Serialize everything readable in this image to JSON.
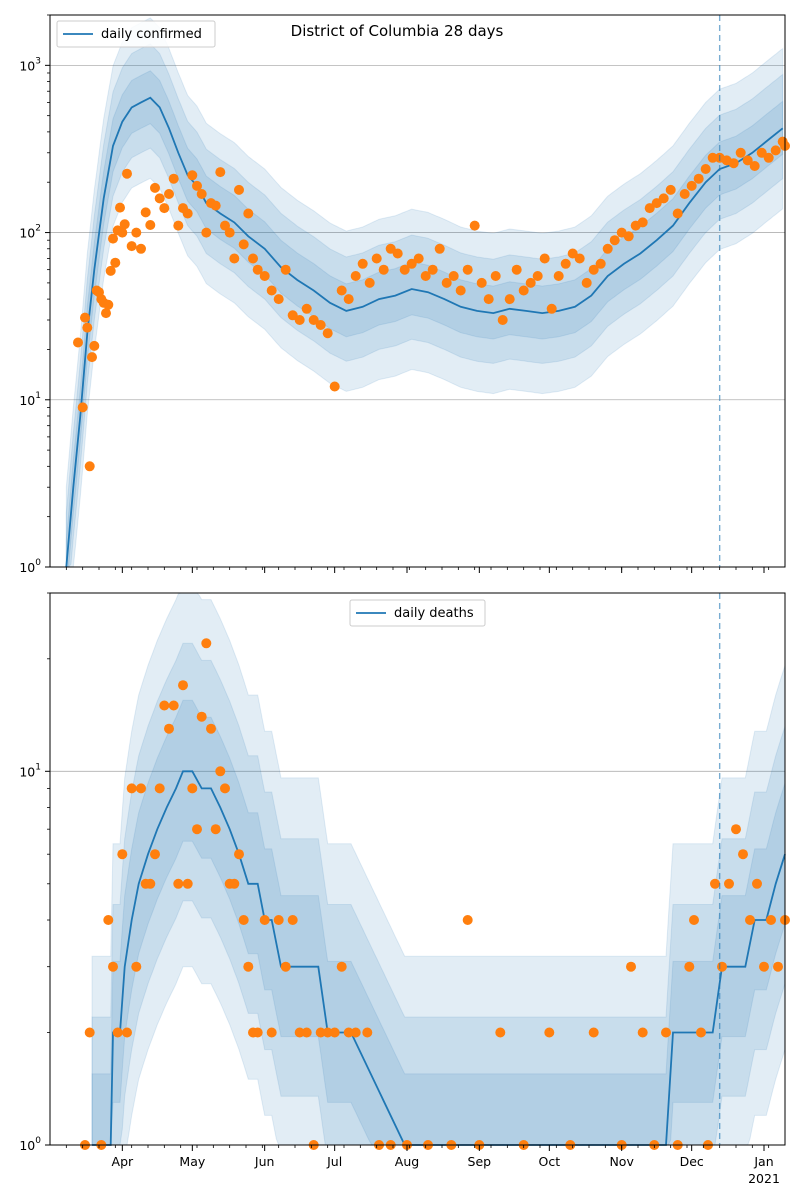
{
  "chart_data": [
    {
      "type": "line",
      "title": "District of Columbia 28 days",
      "legend": {
        "label": "daily confirmed",
        "placement": "top-left"
      },
      "xlabel": "",
      "ylabel": "",
      "yscale": "log",
      "ylim": [
        1,
        2000
      ],
      "yticks": [
        {
          "value": 1,
          "base": "10",
          "exp": "0"
        },
        {
          "value": 10,
          "base": "10",
          "exp": "1"
        },
        {
          "value": 100,
          "base": "10",
          "exp": "2"
        },
        {
          "value": 1000,
          "base": "10",
          "exp": "3"
        }
      ],
      "grid": "horizontal major",
      "forecast_start": "2020-12-13",
      "colors": {
        "median": "#1f77b4",
        "band": "#1f77b4",
        "observed": "#ff7f0e"
      },
      "median_series": {
        "x": [
          "2020-03-08",
          "2020-03-11",
          "2020-03-14",
          "2020-03-17",
          "2020-03-20",
          "2020-03-24",
          "2020-03-28",
          "2020-04-01",
          "2020-04-05",
          "2020-04-09",
          "2020-04-13",
          "2020-04-17",
          "2020-04-21",
          "2020-04-25",
          "2020-04-29",
          "2020-05-03",
          "2020-05-07",
          "2020-05-13",
          "2020-05-19",
          "2020-05-25",
          "2020-06-01",
          "2020-06-08",
          "2020-06-15",
          "2020-06-22",
          "2020-06-29",
          "2020-07-06",
          "2020-07-13",
          "2020-07-20",
          "2020-07-27",
          "2020-08-03",
          "2020-08-10",
          "2020-08-17",
          "2020-08-24",
          "2020-08-31",
          "2020-09-07",
          "2020-09-14",
          "2020-09-21",
          "2020-09-28",
          "2020-10-05",
          "2020-10-12",
          "2020-10-19",
          "2020-10-26",
          "2020-11-02",
          "2020-11-09",
          "2020-11-16",
          "2020-11-23",
          "2020-11-30",
          "2020-12-07",
          "2020-12-13",
          "2020-12-20",
          "2020-12-27",
          "2021-01-03",
          "2021-01-09"
        ],
        "y": [
          1,
          3,
          8,
          25,
          60,
          160,
          330,
          460,
          560,
          600,
          640,
          560,
          420,
          300,
          220,
          190,
          150,
          130,
          115,
          95,
          80,
          62,
          52,
          45,
          38,
          34,
          36,
          40,
          42,
          46,
          44,
          40,
          36,
          34,
          33,
          35,
          34,
          33,
          34,
          36,
          42,
          55,
          65,
          75,
          90,
          110,
          150,
          200,
          240,
          260,
          300,
          360,
          420
        ]
      },
      "bands": [
        {
          "name": "50% interval",
          "lower_factor": 0.7,
          "upper_factor": 1.45
        },
        {
          "name": "80% interval",
          "lower_factor": 0.5,
          "upper_factor": 2.1
        },
        {
          "name": "95% interval",
          "lower_factor": 0.33,
          "upper_factor": 3.0
        }
      ],
      "observed_points": {
        "x": [
          "2020-03-13",
          "2020-03-15",
          "2020-03-16",
          "2020-03-17",
          "2020-03-18",
          "2020-03-19",
          "2020-03-20",
          "2020-03-21",
          "2020-03-22",
          "2020-03-23",
          "2020-03-24",
          "2020-03-25",
          "2020-03-26",
          "2020-03-27",
          "2020-03-28",
          "2020-03-29",
          "2020-03-30",
          "2020-03-31",
          "2020-04-01",
          "2020-04-02",
          "2020-04-03",
          "2020-04-05",
          "2020-04-07",
          "2020-04-09",
          "2020-04-11",
          "2020-04-13",
          "2020-04-15",
          "2020-04-17",
          "2020-04-19",
          "2020-04-21",
          "2020-04-23",
          "2020-04-25",
          "2020-04-27",
          "2020-04-29",
          "2020-05-01",
          "2020-05-03",
          "2020-05-05",
          "2020-05-07",
          "2020-05-09",
          "2020-05-11",
          "2020-05-13",
          "2020-05-15",
          "2020-05-17",
          "2020-05-19",
          "2020-05-21",
          "2020-05-23",
          "2020-05-25",
          "2020-05-27",
          "2020-05-29",
          "2020-06-01",
          "2020-06-04",
          "2020-06-07",
          "2020-06-10",
          "2020-06-13",
          "2020-06-16",
          "2020-06-19",
          "2020-06-22",
          "2020-06-25",
          "2020-06-28",
          "2020-07-01",
          "2020-07-04",
          "2020-07-07",
          "2020-07-10",
          "2020-07-13",
          "2020-07-16",
          "2020-07-19",
          "2020-07-22",
          "2020-07-25",
          "2020-07-28",
          "2020-07-31",
          "2020-08-03",
          "2020-08-06",
          "2020-08-09",
          "2020-08-12",
          "2020-08-15",
          "2020-08-18",
          "2020-08-21",
          "2020-08-24",
          "2020-08-27",
          "2020-08-30",
          "2020-09-02",
          "2020-09-05",
          "2020-09-08",
          "2020-09-11",
          "2020-09-14",
          "2020-09-17",
          "2020-09-20",
          "2020-09-23",
          "2020-09-26",
          "2020-09-29",
          "2020-10-02",
          "2020-10-05",
          "2020-10-08",
          "2020-10-11",
          "2020-10-14",
          "2020-10-17",
          "2020-10-20",
          "2020-10-23",
          "2020-10-26",
          "2020-10-29",
          "2020-11-01",
          "2020-11-04",
          "2020-11-07",
          "2020-11-10",
          "2020-11-13",
          "2020-11-16",
          "2020-11-19",
          "2020-11-22",
          "2020-11-25",
          "2020-11-28",
          "2020-12-01",
          "2020-12-04",
          "2020-12-07",
          "2020-12-10",
          "2020-12-13",
          "2020-12-16",
          "2020-12-19",
          "2020-12-22",
          "2020-12-25",
          "2020-12-28",
          "2020-12-31",
          "2021-01-03",
          "2021-01-06",
          "2021-01-09",
          "2021-01-10"
        ],
        "y": [
          22,
          9,
          31,
          27,
          4,
          18,
          21,
          45,
          44,
          40,
          38,
          33,
          37,
          59,
          92,
          66,
          103,
          141,
          100,
          112,
          225,
          83,
          100,
          80,
          132,
          111,
          185,
          160,
          140,
          170,
          210,
          110,
          140,
          130,
          220,
          190,
          170,
          100,
          150,
          145,
          230,
          110,
          100,
          70,
          180,
          85,
          130,
          70,
          60,
          55,
          45,
          40,
          60,
          32,
          30,
          35,
          30,
          28,
          25,
          12,
          45,
          40,
          55,
          65,
          50,
          70,
          60,
          80,
          75,
          60,
          65,
          70,
          55,
          60,
          80,
          50,
          55,
          45,
          60,
          110,
          50,
          40,
          55,
          30,
          40,
          60,
          45,
          50,
          55,
          70,
          35,
          55,
          65,
          75,
          70,
          50,
          60,
          65,
          80,
          90,
          100,
          95,
          110,
          115,
          140,
          150,
          160,
          180,
          130,
          170,
          190,
          210,
          240,
          280,
          280,
          270,
          260,
          300,
          270,
          250,
          300,
          280,
          310,
          350,
          330
        ]
      }
    },
    {
      "type": "line",
      "title": "",
      "legend": {
        "label": "daily deaths",
        "placement": "top-center"
      },
      "xlabel": "",
      "ylabel": "",
      "yscale": "log",
      "ylim": [
        1,
        30
      ],
      "yticks": [
        {
          "value": 1,
          "base": "10",
          "exp": "0"
        },
        {
          "value": 10,
          "base": "10",
          "exp": "1"
        }
      ],
      "grid": "horizontal major",
      "forecast_start": "2020-12-13",
      "colors": {
        "median": "#1f77b4",
        "band": "#1f77b4",
        "observed": "#ff7f0e"
      },
      "median_series": {
        "x": [
          "2020-03-19",
          "2020-03-24",
          "2020-03-27",
          "2020-03-28",
          "2020-03-31",
          "2020-04-02",
          "2020-04-05",
          "2020-04-08",
          "2020-04-12",
          "2020-04-16",
          "2020-04-20",
          "2020-04-24",
          "2020-04-27",
          "2020-05-01",
          "2020-05-05",
          "2020-05-09",
          "2020-05-13",
          "2020-05-17",
          "2020-05-21",
          "2020-05-25",
          "2020-05-29",
          "2020-06-01",
          "2020-06-04",
          "2020-06-08",
          "2020-06-12",
          "2020-06-16",
          "2020-06-20",
          "2020-06-24",
          "2020-06-28",
          "2020-07-01",
          "2020-07-04",
          "2020-07-08",
          "2020-07-31",
          "2020-09-01",
          "2020-10-01",
          "2020-11-01",
          "2020-11-20",
          "2020-11-23",
          "2020-11-26",
          "2020-11-29",
          "2020-12-03",
          "2020-12-06",
          "2020-12-10",
          "2020-12-14",
          "2020-12-20",
          "2020-12-24",
          "2020-12-28",
          "2021-01-02",
          "2021-01-06",
          "2021-01-10"
        ],
        "y": [
          1,
          1,
          1,
          2,
          2,
          3,
          4,
          5,
          6,
          7,
          8,
          9,
          10,
          10,
          9,
          9,
          8,
          7,
          6,
          5,
          5,
          4,
          4,
          3,
          3,
          3,
          3,
          3,
          2,
          2,
          2,
          2,
          1,
          1,
          1,
          1,
          1,
          2,
          2,
          2,
          2,
          2,
          2,
          3,
          3,
          3,
          4,
          4,
          5,
          6
        ]
      },
      "bands": [
        {
          "name": "50% interval",
          "lower_factor": 0.65,
          "upper_factor": 1.55
        },
        {
          "name": "80% interval",
          "lower_factor": 0.45,
          "upper_factor": 2.2
        },
        {
          "name": "95% interval",
          "lower_factor": 0.3,
          "upper_factor": 3.2
        }
      ],
      "observed_points": {
        "x": [
          "2020-03-16",
          "2020-03-18",
          "2020-03-23",
          "2020-03-26",
          "2020-03-28",
          "2020-03-30",
          "2020-04-01",
          "2020-04-03",
          "2020-04-05",
          "2020-04-07",
          "2020-04-09",
          "2020-04-11",
          "2020-04-13",
          "2020-04-15",
          "2020-04-17",
          "2020-04-19",
          "2020-04-21",
          "2020-04-23",
          "2020-04-25",
          "2020-04-27",
          "2020-04-29",
          "2020-05-01",
          "2020-05-03",
          "2020-05-05",
          "2020-05-07",
          "2020-05-09",
          "2020-05-11",
          "2020-05-13",
          "2020-05-15",
          "2020-05-17",
          "2020-05-19",
          "2020-05-21",
          "2020-05-23",
          "2020-05-25",
          "2020-05-27",
          "2020-05-29",
          "2020-06-01",
          "2020-06-04",
          "2020-06-07",
          "2020-06-10",
          "2020-06-13",
          "2020-06-16",
          "2020-06-19",
          "2020-06-22",
          "2020-06-25",
          "2020-06-28",
          "2020-07-01",
          "2020-07-04",
          "2020-07-07",
          "2020-07-10",
          "2020-07-15",
          "2020-07-20",
          "2020-07-25",
          "2020-08-01",
          "2020-08-10",
          "2020-08-20",
          "2020-08-27",
          "2020-09-01",
          "2020-09-10",
          "2020-09-20",
          "2020-10-01",
          "2020-10-10",
          "2020-10-20",
          "2020-11-01",
          "2020-11-05",
          "2020-11-10",
          "2020-11-15",
          "2020-11-20",
          "2020-11-25",
          "2020-11-30",
          "2020-12-02",
          "2020-12-05",
          "2020-12-08",
          "2020-12-11",
          "2020-12-14",
          "2020-12-17",
          "2020-12-20",
          "2020-12-23",
          "2020-12-26",
          "2020-12-29",
          "2021-01-01",
          "2021-01-04",
          "2021-01-07",
          "2021-01-10"
        ],
        "y": [
          1,
          2,
          1,
          4,
          3,
          2,
          6,
          2,
          9,
          3,
          9,
          5,
          5,
          6,
          9,
          15,
          13,
          15,
          5,
          17,
          5,
          9,
          7,
          14,
          22,
          13,
          7,
          10,
          9,
          5,
          5,
          6,
          4,
          3,
          2,
          2,
          4,
          2,
          4,
          3,
          4,
          2,
          2,
          1,
          2,
          2,
          2,
          3,
          2,
          2,
          2,
          1,
          1,
          1,
          1,
          1,
          4,
          1,
          2,
          1,
          2,
          1,
          2,
          1,
          3,
          2,
          1,
          2,
          1,
          3,
          4,
          2,
          1,
          5,
          3,
          5,
          7,
          6,
          4,
          5,
          3,
          4,
          3,
          4
        ]
      }
    }
  ],
  "x_axis": {
    "ticks": [
      {
        "date": "2020-04-01",
        "label": "Apr"
      },
      {
        "date": "2020-05-01",
        "label": "May"
      },
      {
        "date": "2020-06-01",
        "label": "Jun"
      },
      {
        "date": "2020-07-01",
        "label": "Jul"
      },
      {
        "date": "2020-08-01",
        "label": "Aug"
      },
      {
        "date": "2020-09-01",
        "label": "Sep"
      },
      {
        "date": "2020-10-01",
        "label": "Oct"
      },
      {
        "date": "2020-11-01",
        "label": "Nov"
      },
      {
        "date": "2020-12-01",
        "label": "Dec"
      },
      {
        "date": "2021-01-01",
        "label": "Jan"
      }
    ],
    "year_label": "2021",
    "range": [
      "2020-03-01",
      "2021-01-10"
    ]
  }
}
